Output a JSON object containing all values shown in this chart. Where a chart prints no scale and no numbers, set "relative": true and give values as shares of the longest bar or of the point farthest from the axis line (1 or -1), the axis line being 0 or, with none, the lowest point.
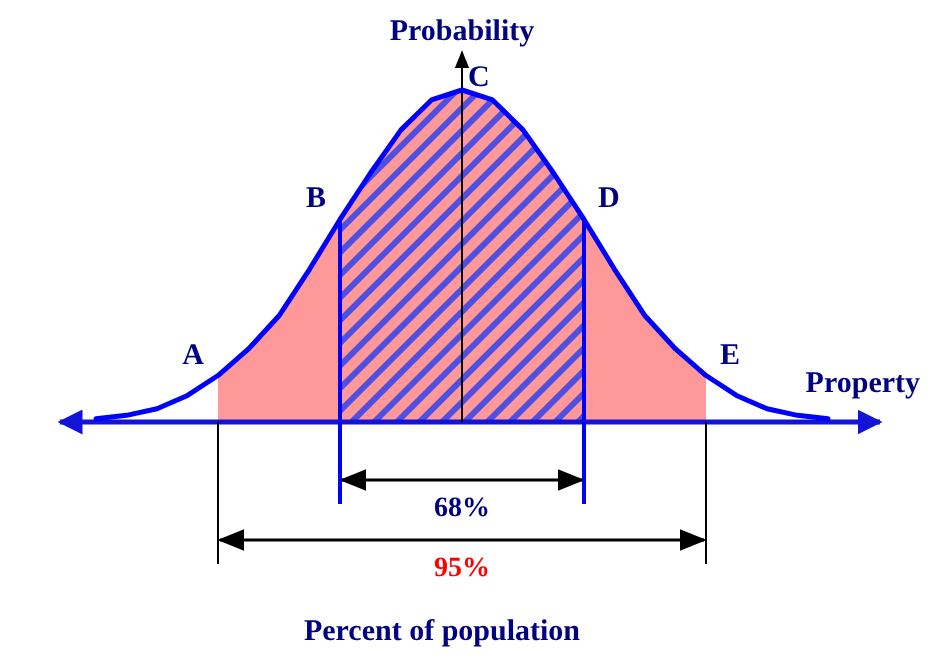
{
  "chart_data": {
    "type": "line",
    "xlabel": "Property",
    "ylabel": "Probability",
    "relative": true,
    "categories": [
      null,
      null,
      null,
      null,
      null,
      null,
      null,
      null,
      null,
      null,
      null,
      null,
      null,
      null,
      null,
      null,
      null,
      null,
      null,
      null,
      null,
      null,
      null,
      null,
      null
    ],
    "series": [
      {
        "color": "#0000ff",
        "values": [
          0.01,
          0.02,
          0.04,
          0.08,
          0.14,
          0.22,
          0.32,
          0.46,
          0.61,
          0.75,
          0.88,
          0.97,
          1,
          0.97,
          0.88,
          0.75,
          0.61,
          0.46,
          0.32,
          0.22,
          0.14,
          0.08,
          0.04,
          0.02,
          0.01
        ]
      },
      {
        "type": "area",
        "color": "#ff9999",
        "values": [
          null,
          null,
          null,
          null,
          0.14,
          0.22,
          0.32,
          0.46,
          0.61,
          null,
          null,
          null,
          null,
          null,
          null,
          null,
          0.61,
          0.46,
          0.32,
          0.22,
          0.14,
          null,
          null,
          null,
          null
        ]
      },
      {
        "type": "area",
        "color": "#5050e0",
        "values": [
          null,
          null,
          null,
          null,
          null,
          null,
          null,
          null,
          0.61,
          0.75,
          0.88,
          0.97,
          1,
          0.97,
          0.88,
          0.75,
          0.61,
          null,
          null,
          null,
          null,
          null,
          null,
          null,
          null
        ]
      }
    ],
    "annotations": [
      "A",
      "B",
      "C",
      "D",
      "E",
      "68%",
      "95%",
      "Percent of population"
    ]
  }
}
